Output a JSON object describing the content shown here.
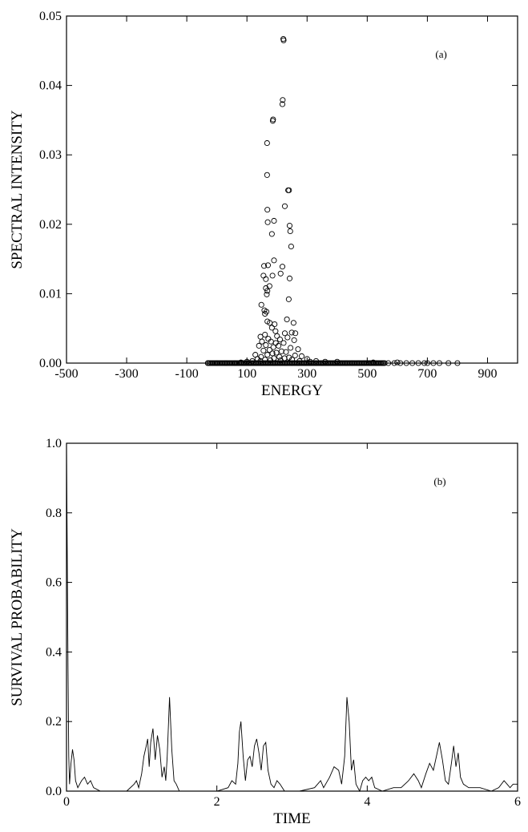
{
  "chart_data": [
    {
      "type": "scatter",
      "panel_label": "(a)",
      "title": "",
      "xlabel": "ENERGY",
      "ylabel": "SPECTRAL INTENSITY",
      "xlim": [
        -500,
        1000
      ],
      "ylim": [
        0,
        0.05
      ],
      "xticks": [
        "-500",
        "-300",
        "-100",
        "100",
        "300",
        "500",
        "700",
        "900"
      ],
      "yticks": [
        "0.00",
        "0.01",
        "0.02",
        "0.03",
        "0.04",
        "0.05"
      ],
      "marker": "open-circle",
      "points": [
        [
          221,
          0.0467
        ],
        [
          222,
          0.0465
        ],
        [
          219,
          0.0379
        ],
        [
          218,
          0.0373
        ],
        [
          187,
          0.0351
        ],
        [
          186,
          0.0349
        ],
        [
          167,
          0.0317
        ],
        [
          167,
          0.0271
        ],
        [
          237,
          0.0249
        ],
        [
          240,
          0.0249
        ],
        [
          168,
          0.0221
        ],
        [
          226,
          0.0226
        ],
        [
          190,
          0.0205
        ],
        [
          169,
          0.0203
        ],
        [
          242,
          0.0198
        ],
        [
          244,
          0.019
        ],
        [
          183,
          0.0186
        ],
        [
          247,
          0.0168
        ],
        [
          190,
          0.0148
        ],
        [
          157,
          0.014
        ],
        [
          170,
          0.0141
        ],
        [
          218,
          0.0139
        ],
        [
          212,
          0.0129
        ],
        [
          185,
          0.0126
        ],
        [
          155,
          0.0126
        ],
        [
          163,
          0.0121
        ],
        [
          242,
          0.0122
        ],
        [
          175,
          0.0111
        ],
        [
          163,
          0.0108
        ],
        [
          168,
          0.0104
        ],
        [
          166,
          0.0099
        ],
        [
          239,
          0.0092
        ],
        [
          148,
          0.0084
        ],
        [
          158,
          0.0076
        ],
        [
          165,
          0.0074
        ],
        [
          160,
          0.0071
        ],
        [
          233,
          0.0063
        ],
        [
          168,
          0.006
        ],
        [
          176,
          0.0058
        ],
        [
          255,
          0.0058
        ],
        [
          192,
          0.0056
        ],
        [
          183,
          0.0051
        ],
        [
          195,
          0.0046
        ],
        [
          226,
          0.0043
        ],
        [
          160,
          0.0041
        ],
        [
          249,
          0.0044
        ],
        [
          261,
          0.0043
        ],
        [
          145,
          0.0038
        ],
        [
          200,
          0.0039
        ],
        [
          235,
          0.0037
        ],
        [
          171,
          0.0035
        ],
        [
          210,
          0.0034
        ],
        [
          257,
          0.0033
        ],
        [
          150,
          0.0031
        ],
        [
          180,
          0.0031
        ],
        [
          196,
          0.0029
        ],
        [
          222,
          0.0029
        ],
        [
          163,
          0.0026
        ],
        [
          140,
          0.0025
        ],
        [
          205,
          0.0025
        ],
        [
          188,
          0.0023
        ],
        [
          245,
          0.0022
        ],
        [
          270,
          0.002
        ],
        [
          175,
          0.0019
        ],
        [
          155,
          0.0018
        ],
        [
          215,
          0.0017
        ],
        [
          230,
          0.0016
        ],
        [
          198,
          0.0015
        ],
        [
          185,
          0.0014
        ],
        [
          128,
          0.0012
        ],
        [
          168,
          0.0012
        ],
        [
          260,
          0.0011
        ],
        [
          282,
          0.001
        ],
        [
          147,
          0.0009
        ],
        [
          208,
          0.0009
        ],
        [
          240,
          0.0008
        ],
        [
          190,
          0.0007
        ],
        [
          225,
          0.0007
        ],
        [
          300,
          0.0006
        ],
        [
          135,
          0.0006
        ],
        [
          160,
          0.0005
        ],
        [
          250,
          0.0005
        ],
        [
          178,
          0.0004
        ],
        [
          212,
          0.0004
        ],
        [
          330,
          0.0003
        ],
        [
          118,
          0.0003
        ],
        [
          145,
          0.0003
        ],
        [
          275,
          0.0003
        ],
        [
          360,
          0.0002
        ],
        [
          100,
          0.0002
        ],
        [
          400,
          0.0002
        ],
        [
          310,
          0.0002
        ],
        [
          520,
          0.0001
        ],
        [
          600,
          0.0001
        ],
        [
          80,
          0.0001
        ]
      ],
      "baseline_points": {
        "y": 0.0,
        "x": [
          -30,
          0,
          30,
          60,
          90,
          110,
          130,
          150,
          170,
          190,
          210,
          230,
          250,
          270,
          290,
          310,
          330,
          350,
          370,
          390,
          410,
          430,
          450,
          470,
          490,
          510,
          530,
          550,
          570,
          590,
          610,
          630,
          650,
          670,
          690,
          700,
          720,
          740,
          770,
          800
        ]
      }
    },
    {
      "type": "line",
      "panel_label": "(b)",
      "title": "",
      "xlabel": "TIME",
      "ylabel": "SURVIVAL PROBABILITY",
      "xlim": [
        0,
        6
      ],
      "ylim": [
        0,
        1.0
      ],
      "xticks": [
        "0",
        "2",
        "4",
        "6"
      ],
      "yticks": [
        "0.0",
        "0.2",
        "0.4",
        "0.6",
        "0.8",
        "1.0"
      ],
      "points": [
        [
          0.0,
          1.0
        ],
        [
          0.01,
          0.7
        ],
        [
          0.02,
          0.35
        ],
        [
          0.03,
          0.1
        ],
        [
          0.04,
          0.02
        ],
        [
          0.06,
          0.08
        ],
        [
          0.08,
          0.12
        ],
        [
          0.1,
          0.09
        ],
        [
          0.12,
          0.03
        ],
        [
          0.15,
          0.01
        ],
        [
          0.2,
          0.03
        ],
        [
          0.24,
          0.04
        ],
        [
          0.28,
          0.02
        ],
        [
          0.32,
          0.03
        ],
        [
          0.36,
          0.01
        ],
        [
          0.45,
          0.0
        ],
        [
          0.6,
          0.0
        ],
        [
          0.8,
          0.0
        ],
        [
          0.9,
          0.02
        ],
        [
          0.93,
          0.03
        ],
        [
          0.96,
          0.01
        ],
        [
          1.0,
          0.05
        ],
        [
          1.03,
          0.1
        ],
        [
          1.06,
          0.13
        ],
        [
          1.08,
          0.15
        ],
        [
          1.1,
          0.07
        ],
        [
          1.12,
          0.14
        ],
        [
          1.15,
          0.18
        ],
        [
          1.18,
          0.09
        ],
        [
          1.21,
          0.16
        ],
        [
          1.24,
          0.12
        ],
        [
          1.27,
          0.04
        ],
        [
          1.3,
          0.07
        ],
        [
          1.32,
          0.03
        ],
        [
          1.34,
          0.1
        ],
        [
          1.37,
          0.27
        ],
        [
          1.4,
          0.12
        ],
        [
          1.43,
          0.03
        ],
        [
          1.46,
          0.02
        ],
        [
          1.5,
          0.0
        ],
        [
          1.7,
          0.0
        ],
        [
          2.0,
          0.0
        ],
        [
          2.15,
          0.01
        ],
        [
          2.2,
          0.03
        ],
        [
          2.25,
          0.02
        ],
        [
          2.28,
          0.08
        ],
        [
          2.3,
          0.17
        ],
        [
          2.32,
          0.2
        ],
        [
          2.35,
          0.1
        ],
        [
          2.38,
          0.03
        ],
        [
          2.41,
          0.09
        ],
        [
          2.44,
          0.1
        ],
        [
          2.47,
          0.07
        ],
        [
          2.5,
          0.13
        ],
        [
          2.53,
          0.15
        ],
        [
          2.56,
          0.11
        ],
        [
          2.59,
          0.06
        ],
        [
          2.62,
          0.13
        ],
        [
          2.65,
          0.14
        ],
        [
          2.68,
          0.06
        ],
        [
          2.72,
          0.02
        ],
        [
          2.76,
          0.01
        ],
        [
          2.8,
          0.03
        ],
        [
          2.84,
          0.02
        ],
        [
          2.9,
          0.0
        ],
        [
          3.1,
          0.0
        ],
        [
          3.3,
          0.01
        ],
        [
          3.38,
          0.03
        ],
        [
          3.42,
          0.01
        ],
        [
          3.5,
          0.04
        ],
        [
          3.56,
          0.07
        ],
        [
          3.62,
          0.06
        ],
        [
          3.66,
          0.02
        ],
        [
          3.7,
          0.1
        ],
        [
          3.73,
          0.27
        ],
        [
          3.76,
          0.2
        ],
        [
          3.79,
          0.06
        ],
        [
          3.82,
          0.09
        ],
        [
          3.85,
          0.02
        ],
        [
          3.9,
          0.0
        ],
        [
          3.94,
          0.03
        ],
        [
          3.98,
          0.04
        ],
        [
          4.02,
          0.03
        ],
        [
          4.06,
          0.04
        ],
        [
          4.1,
          0.01
        ],
        [
          4.2,
          0.0
        ],
        [
          4.35,
          0.01
        ],
        [
          4.45,
          0.01
        ],
        [
          4.55,
          0.03
        ],
        [
          4.62,
          0.05
        ],
        [
          4.68,
          0.03
        ],
        [
          4.72,
          0.01
        ],
        [
          4.78,
          0.05
        ],
        [
          4.83,
          0.08
        ],
        [
          4.88,
          0.06
        ],
        [
          4.92,
          0.1
        ],
        [
          4.96,
          0.14
        ],
        [
          5.0,
          0.09
        ],
        [
          5.04,
          0.03
        ],
        [
          5.08,
          0.02
        ],
        [
          5.12,
          0.08
        ],
        [
          5.15,
          0.13
        ],
        [
          5.18,
          0.07
        ],
        [
          5.21,
          0.11
        ],
        [
          5.24,
          0.04
        ],
        [
          5.28,
          0.02
        ],
        [
          5.35,
          0.01
        ],
        [
          5.5,
          0.01
        ],
        [
          5.65,
          0.0
        ],
        [
          5.75,
          0.01
        ],
        [
          5.82,
          0.03
        ],
        [
          5.86,
          0.02
        ],
        [
          5.9,
          0.01
        ],
        [
          5.94,
          0.02
        ],
        [
          6.0,
          0.02
        ]
      ]
    }
  ]
}
